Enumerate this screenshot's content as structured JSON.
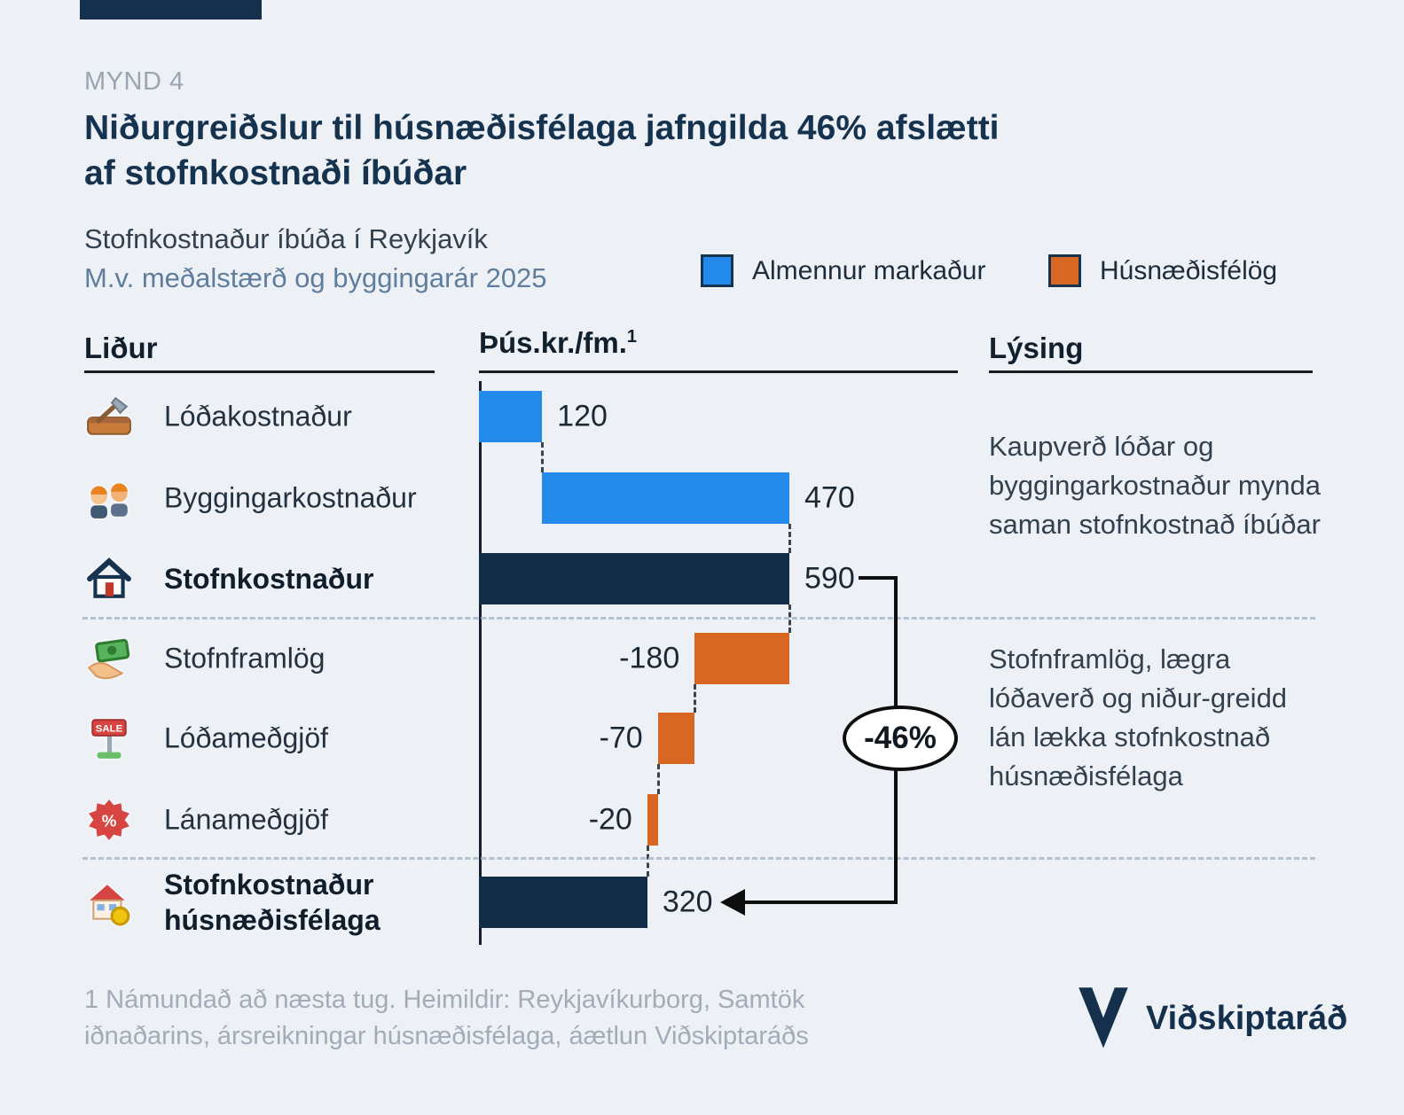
{
  "figure_label": "MYND 4",
  "title": {
    "line1": "Niðurgreiðslur til húsnæðisfélaga jafngilda 46% afslætti",
    "line2": "af stofnkostnaði íbúðar"
  },
  "chart_data": {
    "type": "bar",
    "subtype": "waterfall",
    "title": "Stofnkostnaður íbúða í Reykjavík",
    "subtitle": "M.v. meðalstærð og byggingarár 2025",
    "unit": "Þús.kr./fm.",
    "unit_footnote_marker": "1",
    "xlim": [
      0,
      620
    ],
    "legend": [
      {
        "label": "Almennur markaður",
        "color": "#2389ea"
      },
      {
        "label": "Húsnæðisfélög",
        "color": "#d96724"
      }
    ],
    "columns": {
      "left": "Liður",
      "right": "Lýsing"
    },
    "rows": [
      {
        "label": "Lóðakostnaður",
        "value": 120,
        "display": "120",
        "start": 0,
        "end": 120,
        "color": "#2389ea",
        "bold": false,
        "icon": "soil-shovel-icon"
      },
      {
        "label": "Byggingarkostnaður",
        "value": 470,
        "display": "470",
        "start": 120,
        "end": 590,
        "color": "#2389ea",
        "bold": false,
        "icon": "construction-workers-icon"
      },
      {
        "label": "Stofnkostnaður",
        "value": 590,
        "display": "590",
        "start": 0,
        "end": 590,
        "color": "#132c47",
        "bold": true,
        "icon": "house-icon"
      },
      {
        "label": "Stofnframlög",
        "value": -180,
        "display": "-180",
        "start": 410,
        "end": 590,
        "color": "#d96724",
        "bold": false,
        "icon": "money-hand-icon"
      },
      {
        "label": "Lóðameðgjöf",
        "value": -70,
        "display": "-70",
        "start": 340,
        "end": 410,
        "color": "#d96724",
        "bold": false,
        "icon": "sale-sign-icon"
      },
      {
        "label": "Lánameðgjöf",
        "value": -20,
        "display": "-20",
        "start": 320,
        "end": 340,
        "color": "#d96724",
        "bold": false,
        "icon": "percent-badge-icon"
      },
      {
        "label": "Stofnkostnaður húsnæðisfélaga",
        "value": 320,
        "display": "320",
        "start": 0,
        "end": 320,
        "color": "#132c47",
        "bold": true,
        "icon": "house-coin-icon"
      }
    ],
    "annotation": {
      "text": "-46%"
    }
  },
  "descriptions": {
    "top": "Kaupverð lóðar og byggingarkostnaður mynda saman stofnkostnað íbúðar",
    "bottom": "Stofnframlög, lægra lóðaverð og niður-greidd lán lækka stofnkostnað húsnæðisfélaga"
  },
  "footnote": [
    "1 Námundað að næsta tug. Heimildir: Reykjavíkurborg, Samtök",
    "iðnaðarins, ársreikningar húsnæðisfélaga, áætlun Viðskiptaráðs"
  ],
  "brand": {
    "name": "Viðskiptaráð"
  }
}
